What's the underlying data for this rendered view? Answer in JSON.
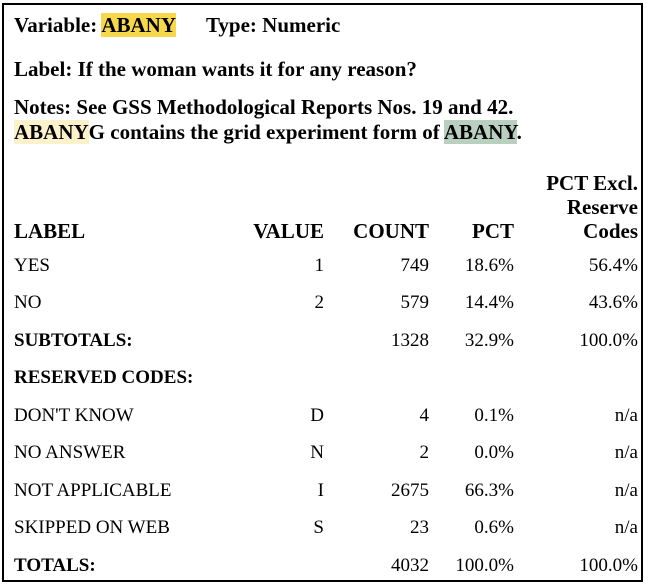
{
  "variable": {
    "prefix": "Variable: ",
    "name": "ABANY",
    "type": "Type: Numeric"
  },
  "label_line": "Label: If the woman wants it for any reason?",
  "notes": {
    "line1": "Notes: See GSS Methodological Reports Nos. 19 and 42.",
    "line2_highlight1": "ABANY",
    "line2_mid": "G contains the grid experiment form of ",
    "line2_highlight2": "ABANY",
    "line2_end": "."
  },
  "highlight_colors": {
    "primary": "#f6d84a",
    "pale": "#fbf2cc",
    "green": "#b9cfc0"
  },
  "table": {
    "headers": {
      "label": "LABEL",
      "value": "VALUE",
      "count": "COUNT",
      "pct": "PCT",
      "pct_excl_1": "PCT Excl.",
      "pct_excl_2": "Reserve",
      "pct_excl_3": "Codes"
    },
    "rows": [
      {
        "label": "YES",
        "value": "1",
        "count": "749",
        "pct": "18.6%",
        "excl": "56.4%"
      },
      {
        "label": "NO",
        "value": "2",
        "count": "579",
        "pct": "14.4%",
        "excl": "43.6%"
      },
      {
        "label": "SUBTOTALS:",
        "value": "",
        "count": "1328",
        "pct": "32.9%",
        "excl": "100.0%"
      },
      {
        "label": "RESERVED CODES:",
        "value": "",
        "count": "",
        "pct": "",
        "excl": ""
      },
      {
        "label": "DON'T KNOW",
        "value": "D",
        "count": "4",
        "pct": "0.1%",
        "excl": "n/a"
      },
      {
        "label": "NO ANSWER",
        "value": "N",
        "count": "2",
        "pct": "0.0%",
        "excl": "n/a"
      },
      {
        "label": "NOT APPLICABLE",
        "value": "I",
        "count": "2675",
        "pct": "66.3%",
        "excl": "n/a"
      },
      {
        "label": "SKIPPED ON WEB",
        "value": "S",
        "count": "23",
        "pct": "0.6%",
        "excl": "n/a"
      },
      {
        "label": "TOTALS:",
        "value": "",
        "count": "4032",
        "pct": "100.0%",
        "excl": "100.0%"
      }
    ]
  }
}
